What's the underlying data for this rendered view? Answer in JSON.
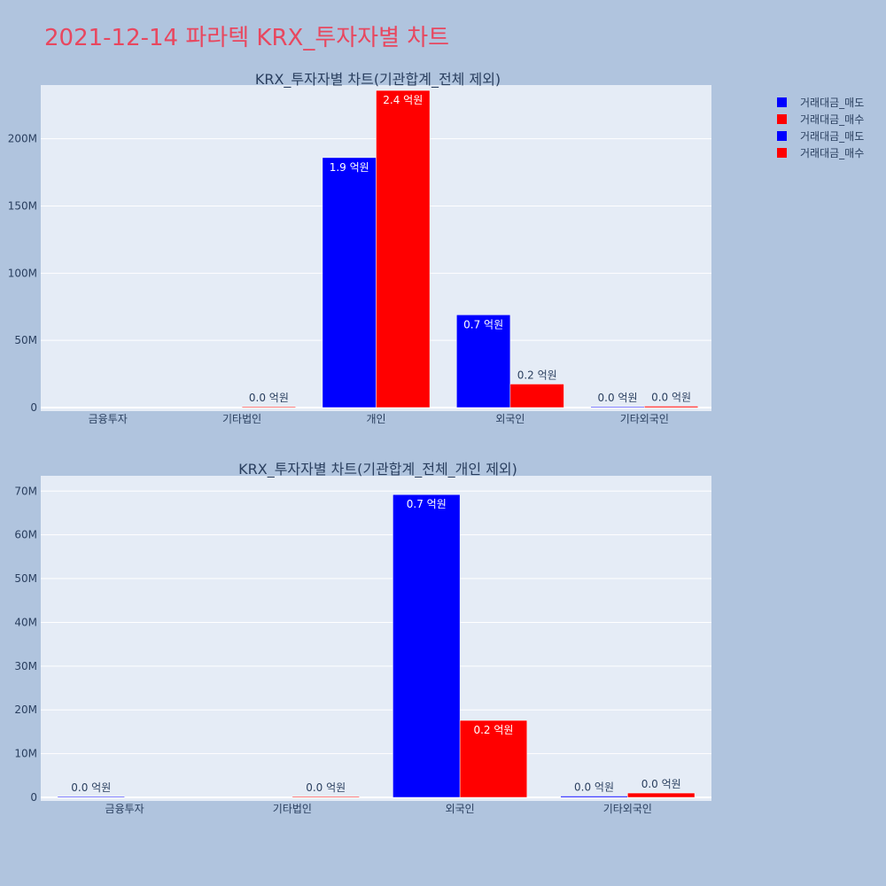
{
  "page_title": "2021-12-14 파라텍 KRX_투자자별 차트",
  "legend": [
    {
      "name": "거래대금_매도",
      "color": "#0000ff"
    },
    {
      "name": "거래대금_매수",
      "color": "#ff0000"
    },
    {
      "name": "거래대금_매도",
      "color": "#0000ff"
    },
    {
      "name": "거래대금_매수",
      "color": "#ff0000"
    }
  ],
  "colors": {
    "sell": "#0000ff",
    "buy": "#ff0000",
    "plot_bg": "#e5ecf6",
    "page_bg": "#b0c4de"
  },
  "chart_data": [
    {
      "type": "bar",
      "title": "KRX_투자자별 차트(기관합계_전체 제외)",
      "categories": [
        "금융투자",
        "기타법인",
        "개인",
        "외국인",
        "기타외국인"
      ],
      "ylim": [
        0,
        240000000
      ],
      "yticks": [
        0,
        50000000,
        100000000,
        150000000,
        200000000
      ],
      "ytick_labels": [
        "0",
        "50M",
        "100M",
        "150M",
        "200M"
      ],
      "grid": true,
      "series": [
        {
          "name": "거래대금_매도",
          "color": "#0000ff",
          "values": [
            0,
            0,
            186000000,
            69000000,
            300000
          ],
          "labels": [
            "",
            "",
            "1.9 억원",
            "0.7 억원",
            "0.0 억원"
          ]
        },
        {
          "name": "거래대금_매수",
          "color": "#ff0000",
          "values": [
            0,
            400000,
            236000000,
            17500000,
            1000000
          ],
          "labels": [
            "",
            "0.0 억원",
            "2.4 억원",
            "0.2 억원",
            "0.0 억원"
          ]
        }
      ]
    },
    {
      "type": "bar",
      "title": "KRX_투자자별 차트(기관합계_전체_개인 제외)",
      "categories": [
        "금융투자",
        "기타법인",
        "외국인",
        "기타외국인"
      ],
      "ylim": [
        0,
        73500000
      ],
      "yticks": [
        0,
        10000000,
        20000000,
        30000000,
        40000000,
        50000000,
        60000000,
        70000000
      ],
      "ytick_labels": [
        "0",
        "10M",
        "20M",
        "30M",
        "40M",
        "50M",
        "60M",
        "70M"
      ],
      "grid": true,
      "series": [
        {
          "name": "거래대금_매도",
          "color": "#0000ff",
          "values": [
            100000,
            0,
            69200000,
            300000
          ],
          "labels": [
            "0.0 억원",
            "",
            "0.7 억원",
            "0.0 억원"
          ]
        },
        {
          "name": "거래대금_매수",
          "color": "#ff0000",
          "values": [
            0,
            200000,
            17600000,
            1000000
          ],
          "labels": [
            "",
            "0.0 억원",
            "0.2 억원",
            "0.0 억원"
          ]
        }
      ]
    }
  ]
}
